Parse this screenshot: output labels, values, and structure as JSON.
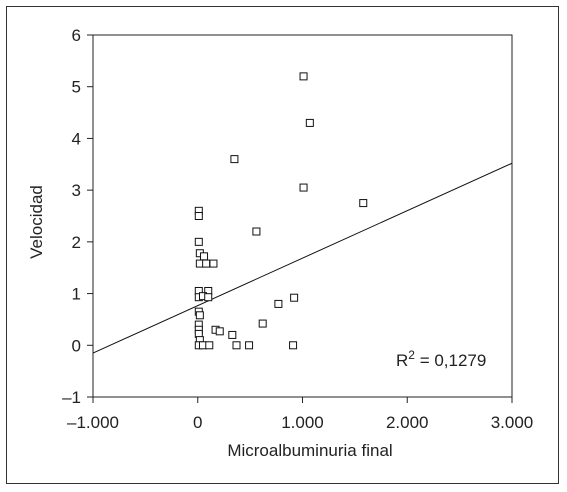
{
  "chart_data": {
    "type": "scatter",
    "xlabel": "Microalbuminuria final",
    "ylabel": "Velocidad",
    "xlim": [
      -1000,
      3000
    ],
    "ylim": [
      -1,
      6
    ],
    "x_ticks": [
      -1000,
      0,
      1000,
      2000,
      3000
    ],
    "x_tick_labels": [
      "–1.000",
      "0",
      "1.000",
      "2.000",
      "3.000"
    ],
    "y_ticks": [
      -1,
      0,
      1,
      2,
      3,
      4,
      5,
      6
    ],
    "y_tick_labels": [
      "–1",
      "0",
      "1",
      "2",
      "3",
      "4",
      "5",
      "6"
    ],
    "points": [
      {
        "x": 1010,
        "y": 5.2
      },
      {
        "x": 1070,
        "y": 4.3
      },
      {
        "x": 350,
        "y": 3.6
      },
      {
        "x": 1010,
        "y": 3.05
      },
      {
        "x": 1580,
        "y": 2.75
      },
      {
        "x": 10,
        "y": 2.6
      },
      {
        "x": 10,
        "y": 2.5
      },
      {
        "x": 560,
        "y": 2.2
      },
      {
        "x": 10,
        "y": 2.0
      },
      {
        "x": 20,
        "y": 1.78
      },
      {
        "x": 60,
        "y": 1.72
      },
      {
        "x": 20,
        "y": 1.58
      },
      {
        "x": 80,
        "y": 1.58
      },
      {
        "x": 150,
        "y": 1.58
      },
      {
        "x": 10,
        "y": 1.05
      },
      {
        "x": 100,
        "y": 1.05
      },
      {
        "x": 10,
        "y": 0.93
      },
      {
        "x": 50,
        "y": 0.95
      },
      {
        "x": 100,
        "y": 0.93
      },
      {
        "x": 920,
        "y": 0.92
      },
      {
        "x": 770,
        "y": 0.8
      },
      {
        "x": 10,
        "y": 0.65
      },
      {
        "x": 20,
        "y": 0.58
      },
      {
        "x": 620,
        "y": 0.42
      },
      {
        "x": 10,
        "y": 0.4
      },
      {
        "x": 10,
        "y": 0.3
      },
      {
        "x": 170,
        "y": 0.3
      },
      {
        "x": 210,
        "y": 0.27
      },
      {
        "x": 10,
        "y": 0.22
      },
      {
        "x": 330,
        "y": 0.2
      },
      {
        "x": 20,
        "y": 0.1
      },
      {
        "x": 10,
        "y": 0.0
      },
      {
        "x": 50,
        "y": 0.0
      },
      {
        "x": 110,
        "y": 0.0
      },
      {
        "x": 370,
        "y": 0.0
      },
      {
        "x": 490,
        "y": 0.0
      },
      {
        "x": 910,
        "y": 0.0
      }
    ],
    "regression_line": {
      "x": [
        -1000,
        3000
      ],
      "y": [
        -0.15,
        3.52
      ]
    },
    "annotation": "R² = 0,1279",
    "annotation_parts": {
      "base": "R",
      "sup": "2",
      "rest": " = 0,1279"
    },
    "grid": false
  }
}
